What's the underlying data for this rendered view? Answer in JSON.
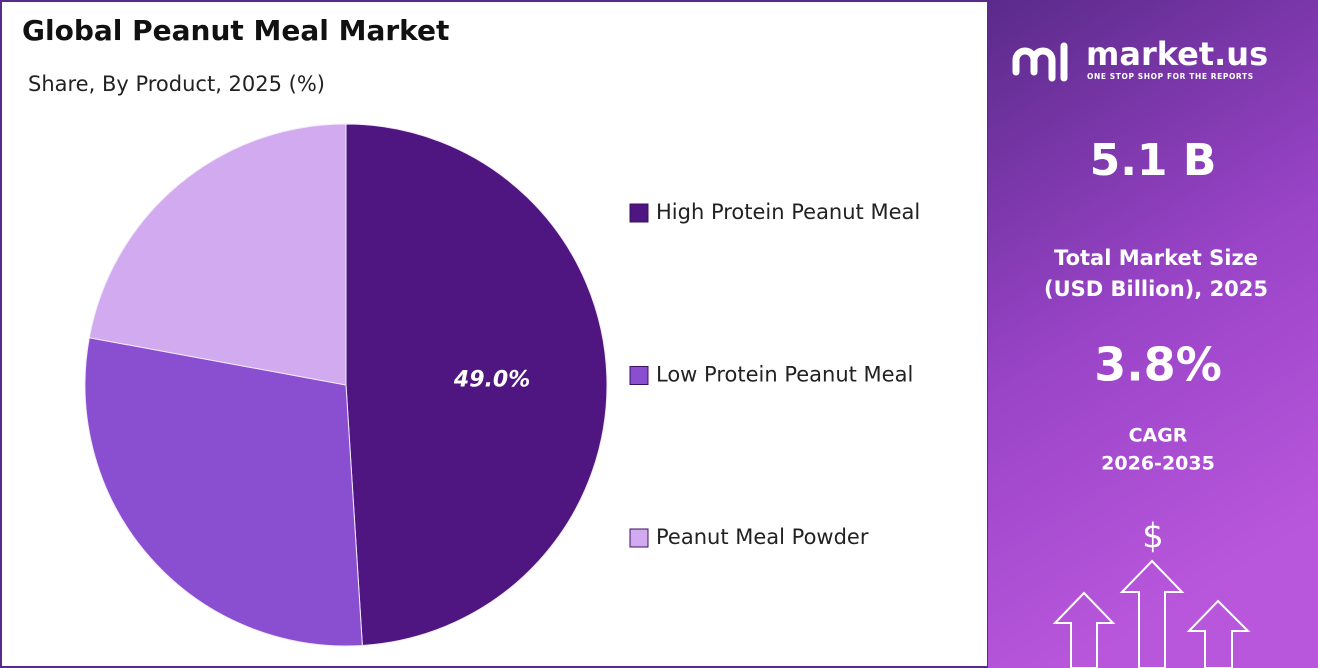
{
  "chart_data": {
    "type": "pie",
    "title": "Global Peanut Meal Market",
    "subtitle": "Share, By Product, 2025 (%)",
    "categories": [
      "High Protein Peanut Meal",
      "Low Protein Peanut Meal",
      "Peanut Meal Powder"
    ],
    "values": [
      49.0,
      28.9,
      22.1
    ],
    "value_labels": [
      "49.0%",
      null,
      null
    ],
    "colors": [
      "#4f1580",
      "#8a4fd0",
      "#d2aaef"
    ],
    "legend": "right"
  },
  "side_panel": {
    "brand": "market.us",
    "tagline": "ONE STOP SHOP FOR THE REPORTS",
    "market_size": "5.1 B",
    "market_size_label": [
      "Total Market Size",
      "(USD Billion), 2025"
    ],
    "cagr": "3.8%",
    "cagr_label": [
      "CAGR",
      "2026-2035"
    ],
    "icon_symbol": "$"
  }
}
